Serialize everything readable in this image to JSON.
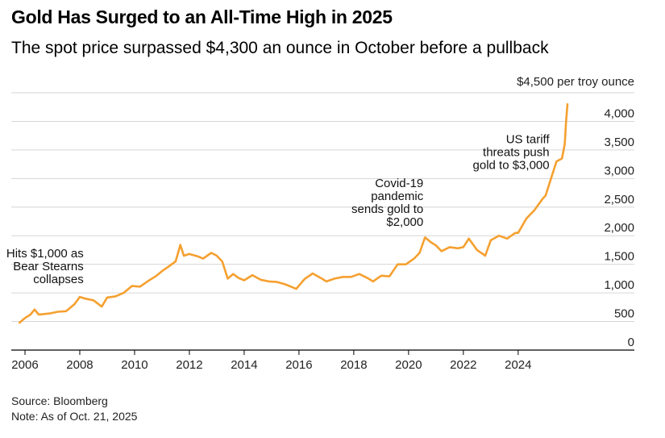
{
  "title": "Gold Has Surged to an All-Time High in 2025",
  "subtitle": "The spot price surpassed $4,300 an ounce in October before a pullback",
  "source": "Source: Bloomberg",
  "note": "Note: As of Oct. 21, 2025",
  "colors": {
    "line": "#F5A030",
    "grid": "#d6d6d6",
    "axis": "#000000"
  },
  "chart_data": {
    "type": "line",
    "ylabel": "$4,500 per troy ounce",
    "ylim": [
      0,
      4500
    ],
    "xlim": [
      2005.5,
      2026.8
    ],
    "grid": true,
    "y_ticks": [
      {
        "value": 0,
        "label": "0"
      },
      {
        "value": 500,
        "label": "500"
      },
      {
        "value": 1000,
        "label": "1,000"
      },
      {
        "value": 1500,
        "label": "1,500"
      },
      {
        "value": 2000,
        "label": "2,000"
      },
      {
        "value": 2500,
        "label": "2,500"
      },
      {
        "value": 3000,
        "label": "3,000"
      },
      {
        "value": 3500,
        "label": "3,500"
      },
      {
        "value": 4000,
        "label": "4,000"
      }
    ],
    "x_ticks": [
      {
        "value": 2006,
        "label": "2006"
      },
      {
        "value": 2008,
        "label": "2008"
      },
      {
        "value": 2010,
        "label": "2010"
      },
      {
        "value": 2012,
        "label": "2012"
      },
      {
        "value": 2014,
        "label": "2014"
      },
      {
        "value": 2016,
        "label": "2016"
      },
      {
        "value": 2018,
        "label": "2018"
      },
      {
        "value": 2020,
        "label": "2020"
      },
      {
        "value": 2022,
        "label": "2022"
      },
      {
        "value": 2024,
        "label": "2024"
      }
    ],
    "series": [
      {
        "x": [
          2005.8,
          2006.0,
          2006.2,
          2006.35,
          2006.5,
          2006.7,
          2006.9,
          2007.2,
          2007.5,
          2007.8,
          2008.0,
          2008.2,
          2008.5,
          2008.8,
          2009.0,
          2009.3,
          2009.6,
          2009.9,
          2010.2,
          2010.5,
          2010.8,
          2011.0,
          2011.3,
          2011.5,
          2011.67,
          2011.8,
          2012.0,
          2012.3,
          2012.5,
          2012.8,
          2013.0,
          2013.2,
          2013.4,
          2013.6,
          2013.8,
          2014.0,
          2014.3,
          2014.6,
          2014.9,
          2015.2,
          2015.5,
          2015.9,
          2016.2,
          2016.5,
          2016.8,
          2017.0,
          2017.3,
          2017.6,
          2017.9,
          2018.2,
          2018.5,
          2018.7,
          2019.0,
          2019.3,
          2019.6,
          2019.9,
          2020.2,
          2020.4,
          2020.6,
          2020.8,
          2021.0,
          2021.2,
          2021.5,
          2021.8,
          2022.0,
          2022.2,
          2022.5,
          2022.8,
          2023.0,
          2023.3,
          2023.6,
          2023.9,
          2024.0,
          2024.3,
          2024.6,
          2024.9,
          2025.0,
          2025.2,
          2025.4,
          2025.6,
          2025.7,
          2025.75,
          2025.8
        ],
        "values": [
          480,
          560,
          620,
          710,
          620,
          630,
          640,
          670,
          680,
          800,
          930,
          900,
          870,
          760,
          920,
          940,
          1000,
          1120,
          1110,
          1210,
          1300,
          1380,
          1480,
          1550,
          1840,
          1650,
          1680,
          1640,
          1600,
          1700,
          1650,
          1550,
          1250,
          1330,
          1260,
          1220,
          1310,
          1230,
          1200,
          1190,
          1150,
          1070,
          1240,
          1340,
          1260,
          1200,
          1250,
          1280,
          1280,
          1330,
          1260,
          1200,
          1300,
          1290,
          1500,
          1500,
          1600,
          1700,
          1970,
          1890,
          1830,
          1730,
          1800,
          1780,
          1800,
          1950,
          1750,
          1650,
          1920,
          2000,
          1950,
          2050,
          2050,
          2300,
          2450,
          2650,
          2700,
          3000,
          3300,
          3350,
          3600,
          4000,
          4300
        ]
      }
    ],
    "annotations": [
      {
        "x": 2008.2,
        "y": 1000,
        "lines": [
          "Hits $1,000 as",
          "Bear Stearns",
          "collapses"
        ]
      },
      {
        "x": 2020.6,
        "y": 2000,
        "lines": [
          "Covid-19",
          "pandemic",
          "sends gold to",
          "$2,000"
        ]
      },
      {
        "x": 2025.2,
        "y": 3000,
        "lines": [
          "US tariff",
          "threats push",
          "gold to $3,000"
        ]
      }
    ]
  }
}
